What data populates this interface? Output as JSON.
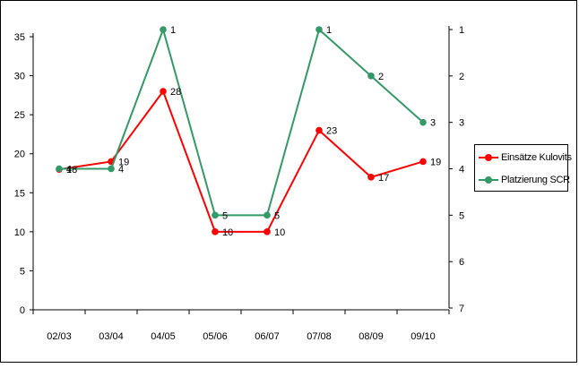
{
  "chart_data": {
    "type": "line",
    "categories": [
      "02/03",
      "03/04",
      "04/05",
      "05/06",
      "06/07",
      "07/08",
      "08/09",
      "09/10"
    ],
    "left_axis": {
      "ylim": [
        0,
        35
      ],
      "ticks": [
        0,
        5,
        10,
        15,
        20,
        25,
        30,
        35
      ]
    },
    "right_axis": {
      "ylim": [
        1,
        7
      ],
      "reversed": true,
      "ticks": [
        1,
        2,
        3,
        4,
        5,
        6,
        7
      ]
    },
    "series": [
      {
        "name": "Einsätze Kulovits",
        "axis": "left",
        "color": "#ff0000",
        "values": [
          18,
          19,
          28,
          10,
          10,
          23,
          17,
          19
        ],
        "labels": [
          "18",
          "19",
          "28",
          "10",
          "10",
          "23",
          "17",
          "19"
        ]
      },
      {
        "name": "Platzierung SCR",
        "axis": "right",
        "color": "#339966",
        "values": [
          4,
          4,
          1,
          5,
          5,
          1,
          2,
          3
        ],
        "labels": [
          "4",
          "4",
          "1",
          "5",
          "5",
          "1",
          "2",
          "3"
        ]
      }
    ],
    "legend_position": "right",
    "grid": false
  }
}
